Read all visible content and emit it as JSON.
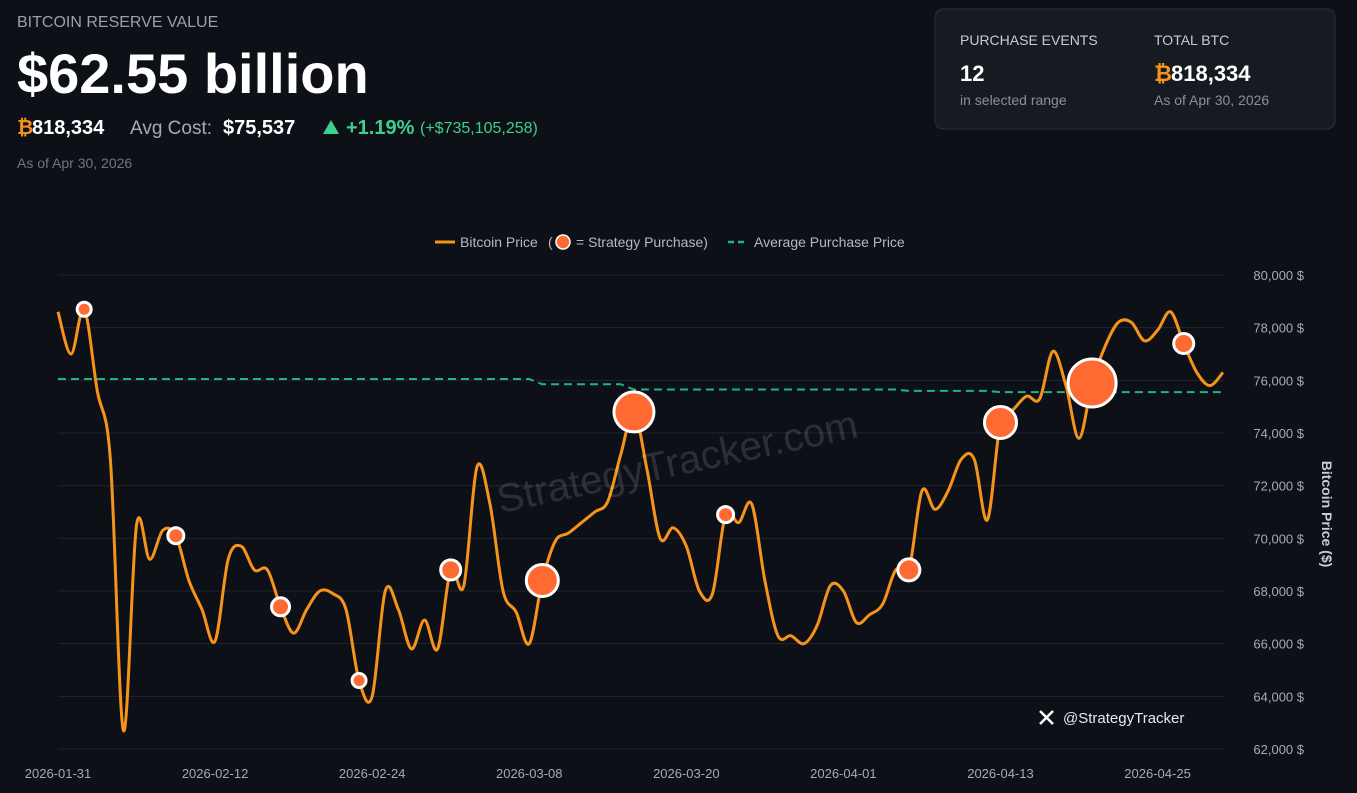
{
  "header": {
    "title": "BITCOIN RESERVE VALUE",
    "value": "$62.55 billion",
    "btc_symbol": "₿",
    "btc": "818,334",
    "avg_cost_label": "Avg Cost:",
    "avg_cost": "$75,537",
    "change_pct": "+1.19%",
    "change_usd": "(+$735,105,258)",
    "as_of": "As of Apr 30, 2026"
  },
  "card": {
    "events_label": "PURCHASE EVENTS",
    "events_value": "12",
    "events_note": "in selected range",
    "btc_label": "TOTAL BTC",
    "btc_symbol": "₿",
    "btc_value": "818,334",
    "btc_note": "As of Apr 30, 2026"
  },
  "chart_data": {
    "type": "line",
    "y_label": "Bitcoin Price ($)",
    "watermark": "StrategyTracker.com",
    "credit": "@StrategyTracker",
    "legend_open": "(",
    "legend_purchase": "= Strategy Purchase)",
    "x": [
      "2026-01-31",
      "2026-02-01",
      "2026-02-02",
      "2026-02-03",
      "2026-02-04",
      "2026-02-05",
      "2026-02-06",
      "2026-02-07",
      "2026-02-08",
      "2026-02-09",
      "2026-02-10",
      "2026-02-11",
      "2026-02-12",
      "2026-02-13",
      "2026-02-14",
      "2026-02-15",
      "2026-02-16",
      "2026-02-17",
      "2026-02-18",
      "2026-02-19",
      "2026-02-20",
      "2026-02-21",
      "2026-02-22",
      "2026-02-23",
      "2026-02-24",
      "2026-02-25",
      "2026-02-26",
      "2026-02-27",
      "2026-02-28",
      "2026-03-01",
      "2026-03-02",
      "2026-03-03",
      "2026-03-04",
      "2026-03-05",
      "2026-03-06",
      "2026-03-07",
      "2026-03-08",
      "2026-03-09",
      "2026-03-10",
      "2026-03-11",
      "2026-03-12",
      "2026-03-13",
      "2026-03-14",
      "2026-03-15",
      "2026-03-16",
      "2026-03-17",
      "2026-03-18",
      "2026-03-19",
      "2026-03-20",
      "2026-03-21",
      "2026-03-22",
      "2026-03-23",
      "2026-03-24",
      "2026-03-25",
      "2026-03-26",
      "2026-03-27",
      "2026-03-28",
      "2026-03-29",
      "2026-03-30",
      "2026-03-31",
      "2026-04-01",
      "2026-04-02",
      "2026-04-03",
      "2026-04-04",
      "2026-04-05",
      "2026-04-06",
      "2026-04-07",
      "2026-04-08",
      "2026-04-09",
      "2026-04-10",
      "2026-04-11",
      "2026-04-12",
      "2026-04-13",
      "2026-04-14",
      "2026-04-15",
      "2026-04-16",
      "2026-04-17",
      "2026-04-18",
      "2026-04-19",
      "2026-04-20",
      "2026-04-21",
      "2026-04-22",
      "2026-04-23",
      "2026-04-24",
      "2026-04-25",
      "2026-04-26",
      "2026-04-27",
      "2026-04-28",
      "2026-04-29",
      "2026-04-30"
    ],
    "series": [
      {
        "name": "Bitcoin Price",
        "color": "#f7931a",
        "values": [
          78600,
          77000,
          78700,
          75600,
          73000,
          62700,
          70500,
          69200,
          70300,
          70100,
          68400,
          67300,
          66100,
          69200,
          69700,
          68800,
          68800,
          67400,
          66400,
          67300,
          68000,
          67900,
          67300,
          64600,
          64000,
          68000,
          67300,
          65800,
          66900,
          65800,
          68800,
          68200,
          72700,
          71300,
          68000,
          67200,
          66000,
          68400,
          69900,
          70200,
          70600,
          71000,
          71400,
          73200,
          74800,
          72600,
          70000,
          70400,
          69700,
          68000,
          67900,
          70900,
          70600,
          71300,
          68400,
          66300,
          66300,
          66000,
          66700,
          68200,
          68000,
          66800,
          67100,
          67500,
          68800,
          68800,
          71800,
          71100,
          71800,
          73000,
          73000,
          70700,
          74400,
          74900,
          75400,
          75300,
          77100,
          75800,
          73800,
          75900,
          77300,
          78200,
          78200,
          77500,
          77900,
          78600,
          77400,
          76300,
          75800,
          76300
        ]
      },
      {
        "name": "Average Purchase Price",
        "color": "#1fb486",
        "dashed": true,
        "values": [
          76050,
          76050,
          76050,
          76050,
          76050,
          76050,
          76050,
          76050,
          76050,
          76050,
          76050,
          76050,
          76050,
          76050,
          76050,
          76050,
          76050,
          76050,
          76050,
          76050,
          76050,
          76050,
          76050,
          76050,
          76050,
          76050,
          76050,
          76050,
          76050,
          76050,
          76050,
          76050,
          76050,
          76050,
          76050,
          76050,
          76050,
          75850,
          75850,
          75850,
          75850,
          75850,
          75850,
          75850,
          75650,
          75650,
          75650,
          75650,
          75650,
          75650,
          75650,
          75650,
          75650,
          75650,
          75650,
          75650,
          75650,
          75650,
          75650,
          75650,
          75650,
          75650,
          75650,
          75650,
          75650,
          75600,
          75600,
          75600,
          75600,
          75600,
          75600,
          75600,
          75550,
          75550,
          75550,
          75550,
          75550,
          75550,
          75550,
          75550,
          75550,
          75550,
          75550,
          75550,
          75550,
          75550,
          75550,
          75550,
          75550,
          75550
        ]
      }
    ],
    "purchases": {
      "color": "#ff6a33",
      "x": [
        "2026-02-02",
        "2026-02-09",
        "2026-02-17",
        "2026-02-23",
        "2026-03-02",
        "2026-03-09",
        "2026-03-16",
        "2026-03-23",
        "2026-04-06",
        "2026-04-13",
        "2026-04-20",
        "2026-04-27"
      ],
      "values": [
        78700,
        70100,
        67400,
        64600,
        68800,
        68400,
        74800,
        70900,
        68800,
        74400,
        75900,
        77400
      ],
      "sizes": [
        7,
        8,
        9,
        7,
        10,
        16,
        20,
        8,
        11,
        16,
        24,
        10
      ]
    },
    "xlim": [
      "2026-01-31",
      "2026-04-30"
    ],
    "xticks": [
      "2026-01-31",
      "2026-02-12",
      "2026-02-24",
      "2026-03-08",
      "2026-03-20",
      "2026-04-01",
      "2026-04-13",
      "2026-04-25"
    ],
    "ylim": [
      62000,
      80000
    ],
    "yticks": [
      {
        "value": 62000,
        "label": "62,000 $"
      },
      {
        "value": 64000,
        "label": "64,000 $"
      },
      {
        "value": 66000,
        "label": "66,000 $"
      },
      {
        "value": 68000,
        "label": "68,000 $"
      },
      {
        "value": 70000,
        "label": "70,000 $"
      },
      {
        "value": 72000,
        "label": "72,000 $"
      },
      {
        "value": 74000,
        "label": "74,000 $"
      },
      {
        "value": 76000,
        "label": "76,000 $"
      },
      {
        "value": 78000,
        "label": "78,000 $"
      },
      {
        "value": 80000,
        "label": "80,000 $"
      }
    ],
    "grid": true
  }
}
